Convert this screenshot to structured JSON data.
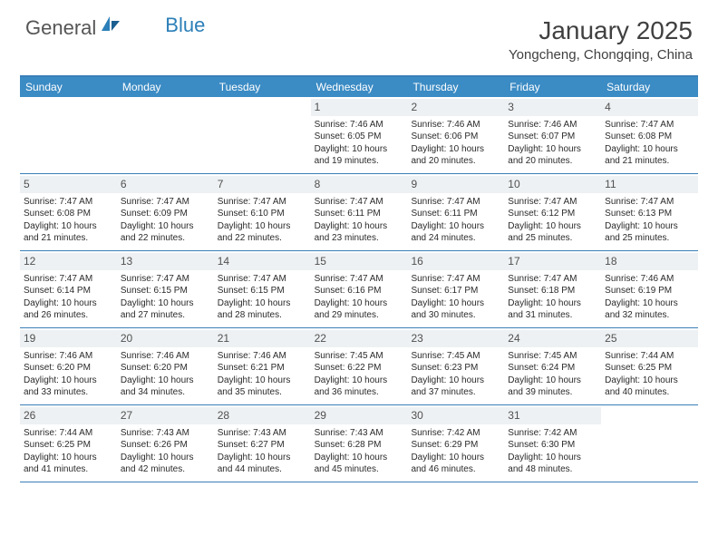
{
  "logo": {
    "text1": "General",
    "text2": "Blue"
  },
  "title": "January 2025",
  "location": "Yongcheng, Chongqing, China",
  "weekdays": [
    "Sunday",
    "Monday",
    "Tuesday",
    "Wednesday",
    "Thursday",
    "Friday",
    "Saturday"
  ],
  "header_bg": "#3b8bc4",
  "border_color": "#3b7fb8",
  "daynum_bg": "#eef1f3",
  "weeks": [
    [
      {
        "n": "",
        "empty": true
      },
      {
        "n": "",
        "empty": true
      },
      {
        "n": "",
        "empty": true
      },
      {
        "n": "1",
        "sunrise": "7:46 AM",
        "sunset": "6:05 PM",
        "dlh": "10",
        "dlm": "19"
      },
      {
        "n": "2",
        "sunrise": "7:46 AM",
        "sunset": "6:06 PM",
        "dlh": "10",
        "dlm": "20"
      },
      {
        "n": "3",
        "sunrise": "7:46 AM",
        "sunset": "6:07 PM",
        "dlh": "10",
        "dlm": "20"
      },
      {
        "n": "4",
        "sunrise": "7:47 AM",
        "sunset": "6:08 PM",
        "dlh": "10",
        "dlm": "21"
      }
    ],
    [
      {
        "n": "5",
        "sunrise": "7:47 AM",
        "sunset": "6:08 PM",
        "dlh": "10",
        "dlm": "21"
      },
      {
        "n": "6",
        "sunrise": "7:47 AM",
        "sunset": "6:09 PM",
        "dlh": "10",
        "dlm": "22"
      },
      {
        "n": "7",
        "sunrise": "7:47 AM",
        "sunset": "6:10 PM",
        "dlh": "10",
        "dlm": "22"
      },
      {
        "n": "8",
        "sunrise": "7:47 AM",
        "sunset": "6:11 PM",
        "dlh": "10",
        "dlm": "23"
      },
      {
        "n": "9",
        "sunrise": "7:47 AM",
        "sunset": "6:11 PM",
        "dlh": "10",
        "dlm": "24"
      },
      {
        "n": "10",
        "sunrise": "7:47 AM",
        "sunset": "6:12 PM",
        "dlh": "10",
        "dlm": "25"
      },
      {
        "n": "11",
        "sunrise": "7:47 AM",
        "sunset": "6:13 PM",
        "dlh": "10",
        "dlm": "25"
      }
    ],
    [
      {
        "n": "12",
        "sunrise": "7:47 AM",
        "sunset": "6:14 PM",
        "dlh": "10",
        "dlm": "26"
      },
      {
        "n": "13",
        "sunrise": "7:47 AM",
        "sunset": "6:15 PM",
        "dlh": "10",
        "dlm": "27"
      },
      {
        "n": "14",
        "sunrise": "7:47 AM",
        "sunset": "6:15 PM",
        "dlh": "10",
        "dlm": "28"
      },
      {
        "n": "15",
        "sunrise": "7:47 AM",
        "sunset": "6:16 PM",
        "dlh": "10",
        "dlm": "29"
      },
      {
        "n": "16",
        "sunrise": "7:47 AM",
        "sunset": "6:17 PM",
        "dlh": "10",
        "dlm": "30"
      },
      {
        "n": "17",
        "sunrise": "7:47 AM",
        "sunset": "6:18 PM",
        "dlh": "10",
        "dlm": "31"
      },
      {
        "n": "18",
        "sunrise": "7:46 AM",
        "sunset": "6:19 PM",
        "dlh": "10",
        "dlm": "32"
      }
    ],
    [
      {
        "n": "19",
        "sunrise": "7:46 AM",
        "sunset": "6:20 PM",
        "dlh": "10",
        "dlm": "33"
      },
      {
        "n": "20",
        "sunrise": "7:46 AM",
        "sunset": "6:20 PM",
        "dlh": "10",
        "dlm": "34"
      },
      {
        "n": "21",
        "sunrise": "7:46 AM",
        "sunset": "6:21 PM",
        "dlh": "10",
        "dlm": "35"
      },
      {
        "n": "22",
        "sunrise": "7:45 AM",
        "sunset": "6:22 PM",
        "dlh": "10",
        "dlm": "36"
      },
      {
        "n": "23",
        "sunrise": "7:45 AM",
        "sunset": "6:23 PM",
        "dlh": "10",
        "dlm": "37"
      },
      {
        "n": "24",
        "sunrise": "7:45 AM",
        "sunset": "6:24 PM",
        "dlh": "10",
        "dlm": "39"
      },
      {
        "n": "25",
        "sunrise": "7:44 AM",
        "sunset": "6:25 PM",
        "dlh": "10",
        "dlm": "40"
      }
    ],
    [
      {
        "n": "26",
        "sunrise": "7:44 AM",
        "sunset": "6:25 PM",
        "dlh": "10",
        "dlm": "41"
      },
      {
        "n": "27",
        "sunrise": "7:43 AM",
        "sunset": "6:26 PM",
        "dlh": "10",
        "dlm": "42"
      },
      {
        "n": "28",
        "sunrise": "7:43 AM",
        "sunset": "6:27 PM",
        "dlh": "10",
        "dlm": "44"
      },
      {
        "n": "29",
        "sunrise": "7:43 AM",
        "sunset": "6:28 PM",
        "dlh": "10",
        "dlm": "45"
      },
      {
        "n": "30",
        "sunrise": "7:42 AM",
        "sunset": "6:29 PM",
        "dlh": "10",
        "dlm": "46"
      },
      {
        "n": "31",
        "sunrise": "7:42 AM",
        "sunset": "6:30 PM",
        "dlh": "10",
        "dlm": "48"
      },
      {
        "n": "",
        "empty": true
      }
    ]
  ]
}
